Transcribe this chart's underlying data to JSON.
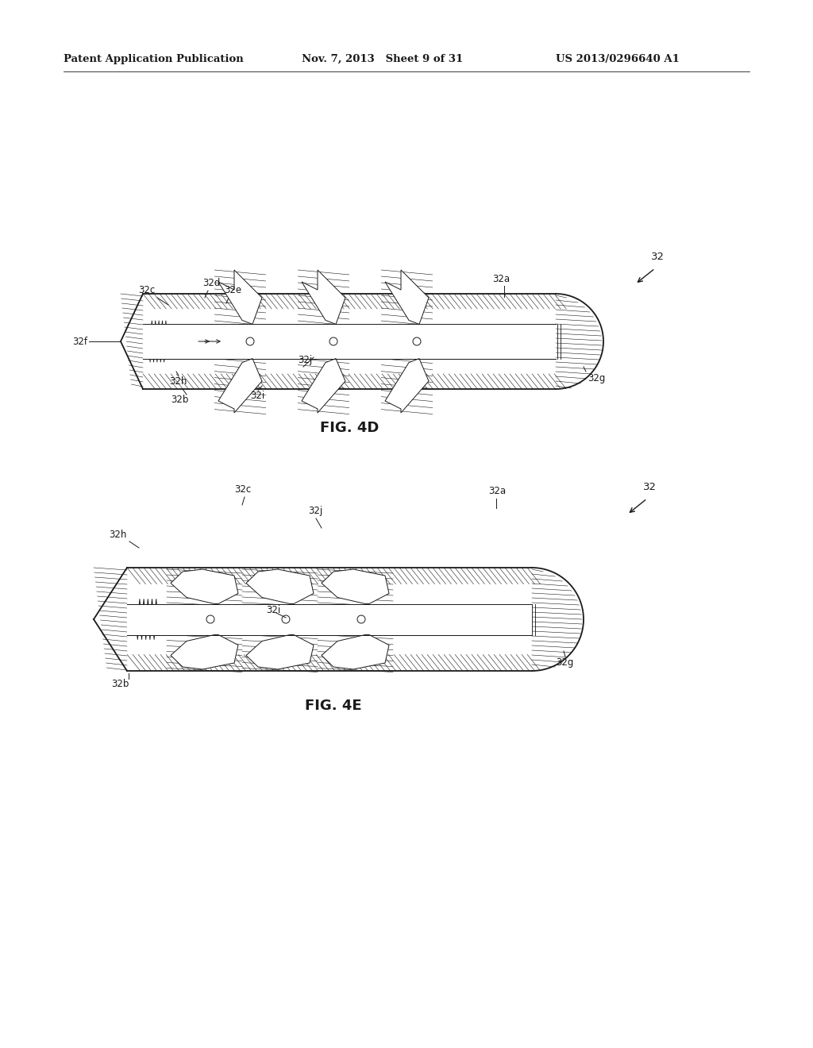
{
  "background_color": "#ffffff",
  "header_left": "Patent Application Publication",
  "header_mid": "Nov. 7, 2013   Sheet 9 of 31",
  "header_right": "US 2013/0296640 A1",
  "fig4d_label": "FIG. 4D",
  "fig4e_label": "FIG. 4E",
  "ref_num": "32",
  "line_color": "#1a1a1a",
  "font_size_header": 9.5,
  "font_size_ref": 8.5,
  "font_size_fig": 13
}
